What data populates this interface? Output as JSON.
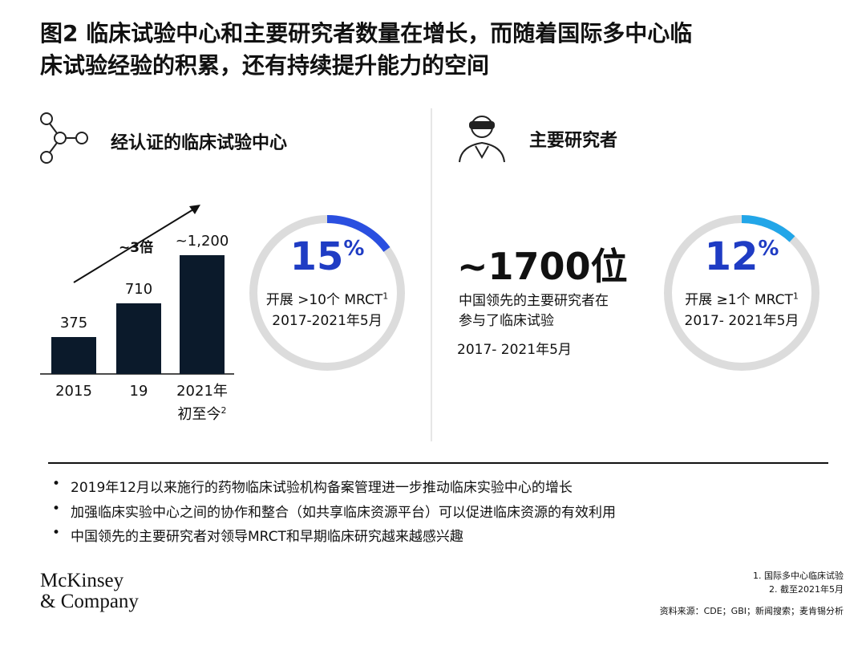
{
  "title": [
    "图2 临床试验中心和主要研究者数量在增长，而随着国际多中心临",
    "床试验经验的积累，还有持续提升能力的空间"
  ],
  "left": {
    "heading": "经认证的临床试验中心",
    "ring": {
      "value": 15,
      "unit": "%",
      "lines": [
        "开展 >10个 MRCT",
        "2017-2021年5月"
      ],
      "note": "1",
      "color": "#2a4fe0"
    }
  },
  "chart_data": {
    "type": "bar",
    "categories": [
      "2015",
      "19",
      "2021年初至今"
    ],
    "note": "2",
    "values": [
      375,
      710,
      1200
    ],
    "value_labels": [
      "375",
      "710",
      "~1,200"
    ],
    "color": "#0b1a2b",
    "ylim": [
      0,
      1200
    ],
    "annotation": "~3倍"
  },
  "right": {
    "heading": "主要研究者",
    "big": "~1700位",
    "lines": [
      "中国领先的主要研究者在",
      "参与了临床试验"
    ],
    "period": "2017- 2021年5月",
    "ring": {
      "value": 12,
      "unit": "%",
      "lines": [
        "开展 ≥1个 MRCT",
        "2017- 2021年5月"
      ],
      "note": "1",
      "color": "#22a6e8"
    }
  },
  "bullets": [
    "2019年12月以来施行的药物临床试验机构备案管理进一步推动临床实验中心的增长",
    "加强临床实验中心之间的协作和整合（如共享临床资源平台）可以促进临床资源的有效利用",
    "中国领先的主要研究者对领导MRCT和早期临床研究越来越感兴趣"
  ],
  "logo": [
    "McKinsey",
    "& Company"
  ],
  "footnotes": [
    "1. 国际多中心临床试验",
    "2. 截至2021年5月"
  ],
  "source": "资料来源：CDE；GBI；新闻搜索；麦肯锡分析"
}
